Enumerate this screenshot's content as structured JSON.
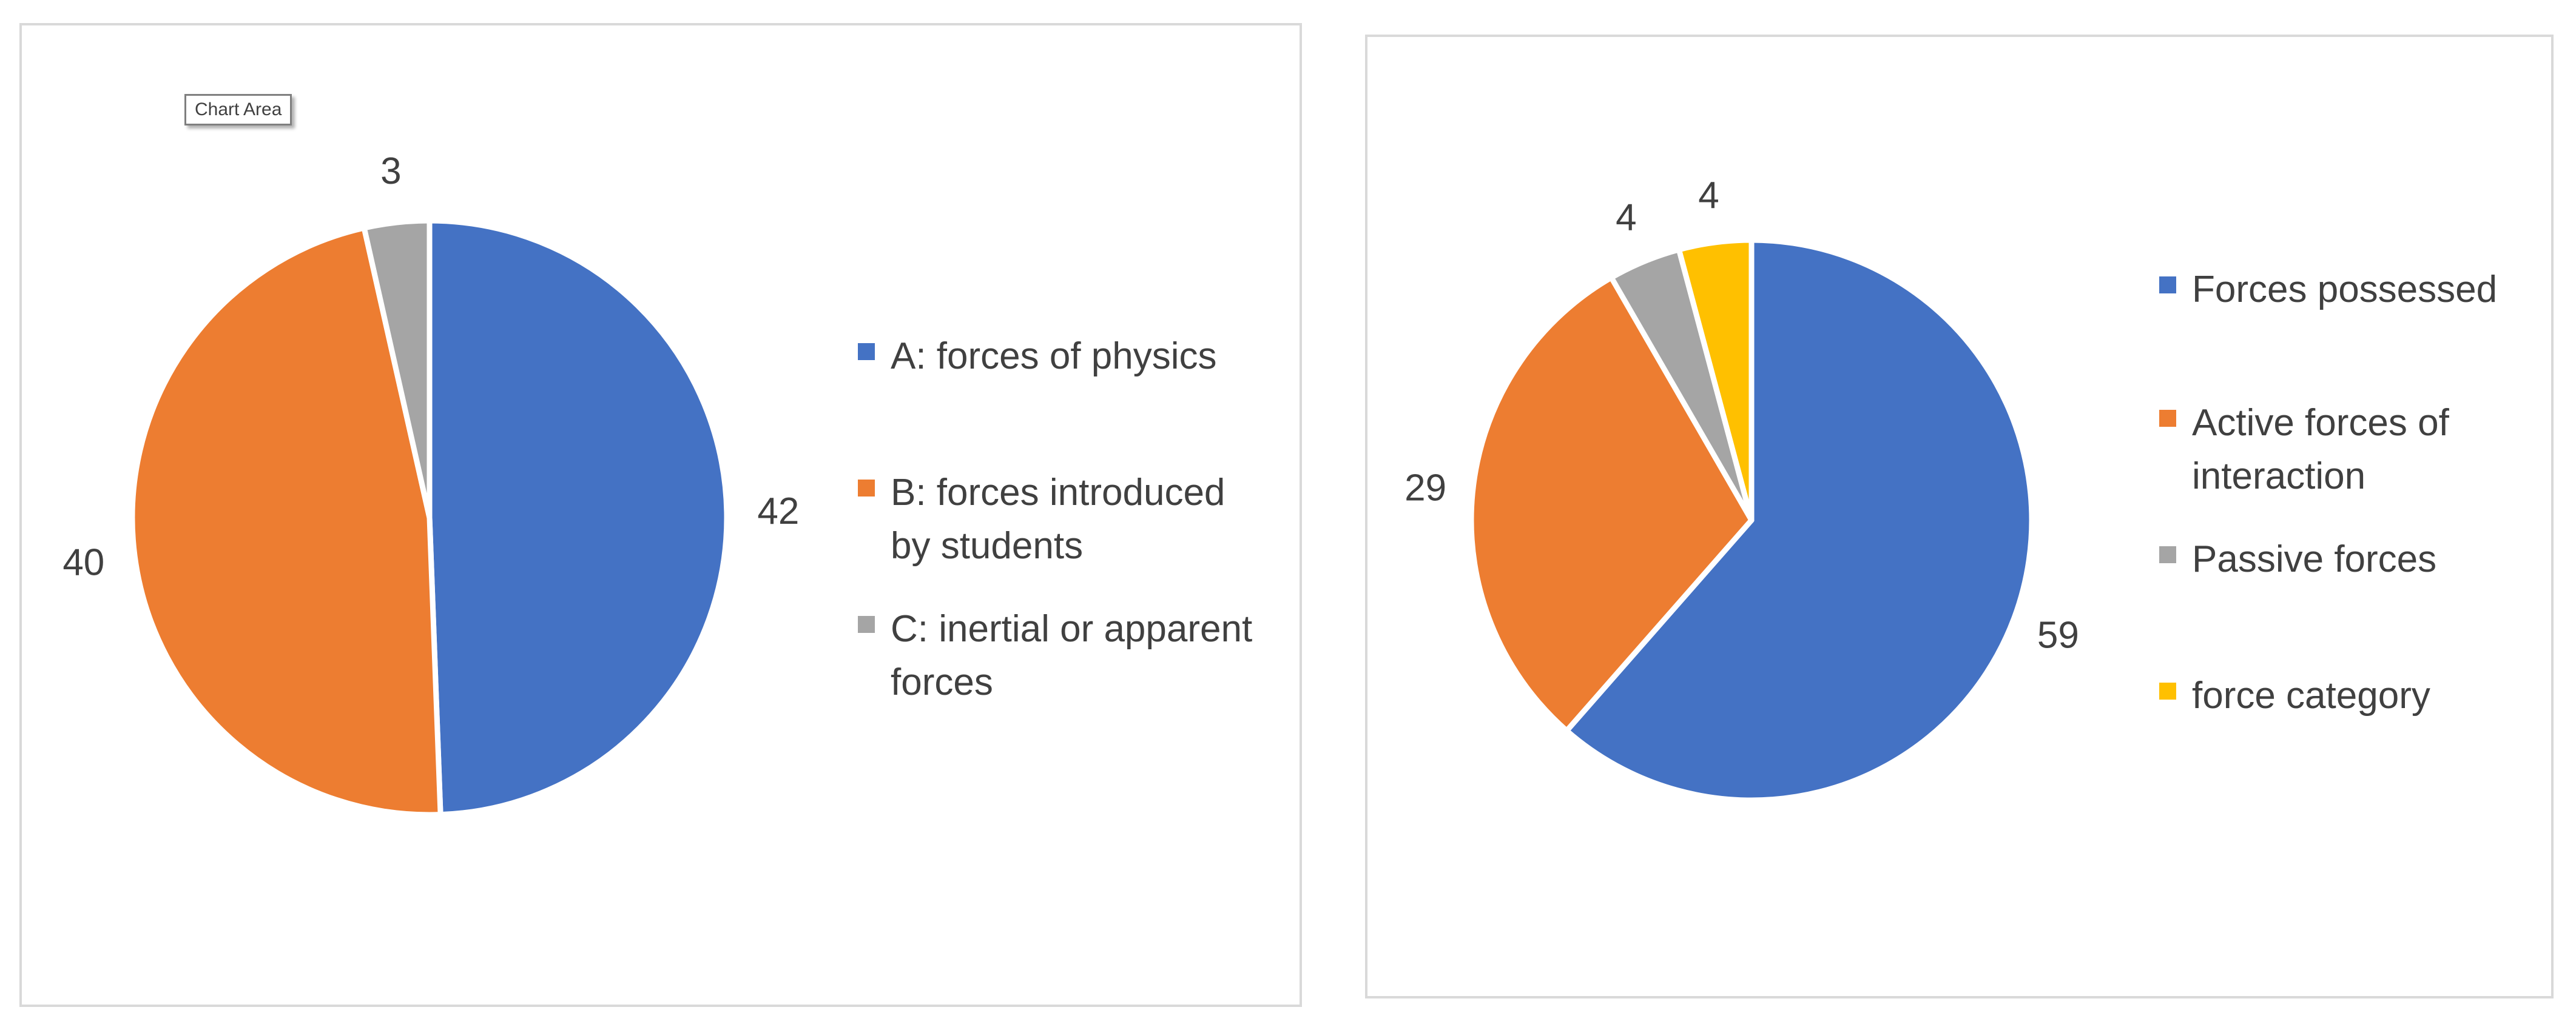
{
  "chart_data": [
    {
      "type": "pie",
      "title": "",
      "tooltip": "Chart Area",
      "slices": [
        {
          "label": "A: forces of physics",
          "value": 42,
          "color": "#4472C4"
        },
        {
          "label": "B: forces introduced by students",
          "value": 40,
          "color": "#ED7D31"
        },
        {
          "label": "C: inertial or apparent forces",
          "value": 3,
          "color": "#A5A5A5"
        }
      ],
      "legend_position": "right",
      "data_labels": "outside"
    },
    {
      "type": "pie",
      "title": "",
      "slices": [
        {
          "label": "Forces possessed",
          "value": 59,
          "color": "#4472C4"
        },
        {
          "label": "Active forces of interaction",
          "value": 29,
          "color": "#ED7D31"
        },
        {
          "label": "Passive forces",
          "value": 4,
          "color": "#A5A5A5"
        },
        {
          "label": "force category",
          "value": 4,
          "color": "#FFC000"
        }
      ],
      "legend_position": "right",
      "data_labels": "outside"
    }
  ]
}
